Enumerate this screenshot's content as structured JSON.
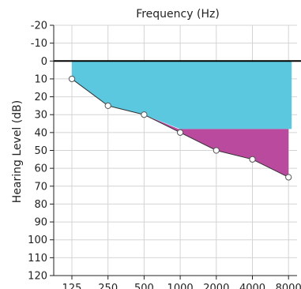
{
  "chart_data": {
    "type": "line",
    "title": "Frequency (Hz)",
    "ylabel": "Hearing Level (dB)",
    "xlabel": "",
    "x_categories": [
      "125",
      "250",
      "500",
      "1000",
      "2000",
      "4000",
      "8000"
    ],
    "y_ticks": [
      -20,
      -10,
      0,
      10,
      20,
      30,
      40,
      50,
      60,
      70,
      80,
      90,
      100,
      110,
      120
    ],
    "ylim": [
      -20,
      120
    ],
    "y_inverted": true,
    "grid": true,
    "reference_line_db": 0,
    "series": [
      {
        "values": [
          10,
          25,
          30,
          40,
          50,
          55,
          65
        ]
      }
    ],
    "shaded_regions": [
      {
        "color": "#5cc8df",
        "top_db": 0,
        "bottom_db": [
          10,
          25,
          30,
          38,
          38,
          38,
          38
        ]
      },
      {
        "color": "#b94a9e",
        "top_db": 38,
        "bottom_db": [
          null,
          null,
          30,
          40,
          50,
          55,
          65
        ]
      }
    ],
    "colors": {
      "grid": "#d4d4d4",
      "axis": "#222222",
      "zero_line": "#000000",
      "line": "#333333",
      "marker_fill": "#ffffff",
      "marker_stroke": "#555555"
    }
  }
}
